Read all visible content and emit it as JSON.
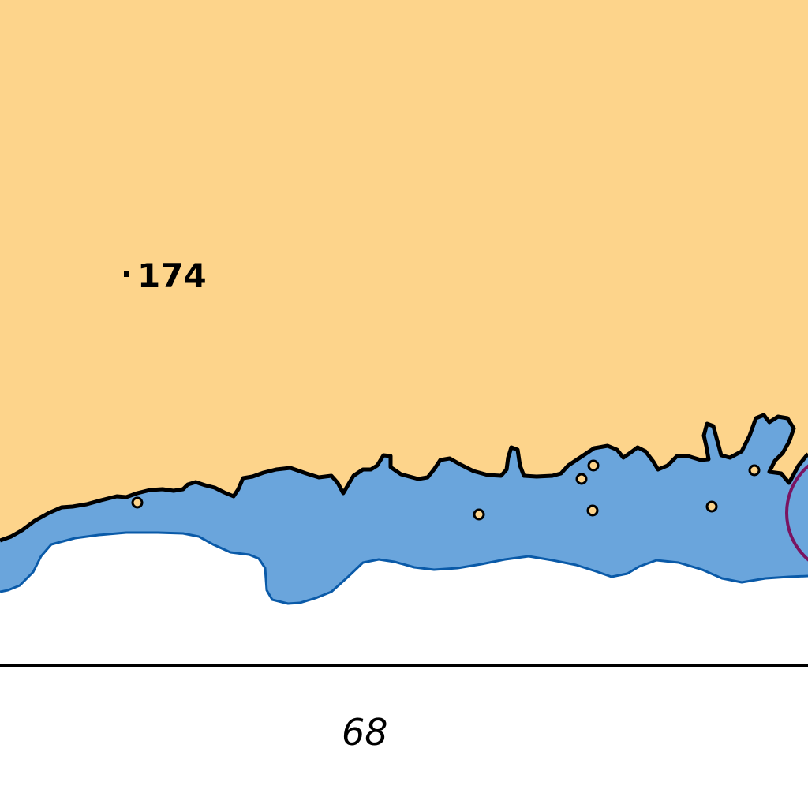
{
  "colors": {
    "land": "#fdd48b",
    "shallow_water": "#6aa5dc",
    "deep_water": "#ffffff",
    "coastline": "#000000",
    "depth_contour": "#0a5aa8",
    "restricted_area": "#7a1461",
    "rock_fill": "#fdd48b",
    "rock_outline": "#000000"
  },
  "spot_height": {
    "value": "174"
  },
  "depth_label": {
    "value": "68"
  },
  "rocks_count": 7,
  "icons": {
    "spot_height_marker": "square-dot-icon",
    "rock": "rock-icon",
    "restricted_area": "circle-boundary-icon"
  }
}
